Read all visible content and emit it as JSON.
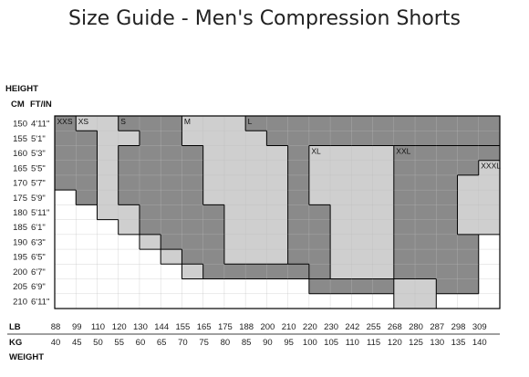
{
  "title": "Size Guide - Men's Compression Shorts",
  "chart_data": {
    "type": "heatmap",
    "axis_labels": {
      "height": "HEIGHT",
      "cm": "CM",
      "ftin": "FT/IN",
      "lb": "LB",
      "kg": "KG",
      "weight": "WEIGHT"
    },
    "height_cm": [
      "150",
      "155",
      "160",
      "165",
      "170",
      "175",
      "180",
      "185",
      "190",
      "195",
      "200",
      "205",
      "210"
    ],
    "height_ft": [
      "4'11\"",
      "5'1\"",
      "5'3\"",
      "5'5\"",
      "5'7\"",
      "5'9\"",
      "5'11\"",
      "6'1\"",
      "6'3\"",
      "6'5\"",
      "6'7\"",
      "6'9\"",
      "6'11\""
    ],
    "weight_lb": [
      "88",
      "99",
      "110",
      "120",
      "130",
      "144",
      "155",
      "165",
      "175",
      "188",
      "200",
      "210",
      "220",
      "230",
      "242",
      "255",
      "268",
      "280",
      "287",
      "298",
      "309"
    ],
    "weight_kg": [
      "40",
      "45",
      "50",
      "55",
      "60",
      "65",
      "70",
      "75",
      "80",
      "85",
      "90",
      "95",
      "100",
      "105",
      "110",
      "115",
      "120",
      "125",
      "130",
      "135",
      "140"
    ],
    "colors": {
      "dark": "#8a8a8a",
      "light": "#cfcfcf",
      "white": "#ffffff",
      "grid": "#bdbdbd",
      "border": "#000000"
    },
    "sizes": [
      {
        "label": "XXS",
        "shade": "dark",
        "staircase": [
          [
            0,
            5
          ],
          [
            1,
            5
          ]
        ]
      },
      {
        "label": "XS",
        "shade": "light",
        "staircase": [
          [
            1,
            6
          ],
          [
            2,
            7
          ],
          [
            3,
            8
          ]
        ]
      },
      {
        "label": "S",
        "shade": "dark",
        "staircase": [
          [
            3,
            9
          ],
          [
            4,
            10
          ],
          [
            5,
            11
          ]
        ]
      },
      {
        "label": "M",
        "shade": "light",
        "staircase": [
          [
            5,
            12
          ],
          [
            6,
            13
          ],
          [
            7,
            14
          ],
          [
            8,
            14
          ]
        ]
      },
      {
        "label": "L",
        "shade": "dark",
        "staircase": [
          [
            7,
            8
          ],
          [
            8,
            9
          ],
          [
            9,
            10
          ],
          [
            10,
            11
          ],
          [
            11,
            12
          ],
          [
            12,
            13
          ],
          [
            13,
            14
          ],
          [
            14,
            16
          ],
          [
            15,
            16
          ],
          [
            16,
            17
          ],
          [
            17,
            20
          ],
          [
            18,
            21
          ],
          [
            19,
            21
          ],
          [
            20,
            21
          ]
        ]
      },
      {
        "label": "XL",
        "shade": "light",
        "staircase": [
          [
            11,
            8
          ]
        ]
      },
      {
        "label": "XXL",
        "shade": "dark",
        "staircase": [
          [
            14,
            8
          ]
        ]
      },
      {
        "label": "XXXL",
        "shade": "light",
        "staircase": [
          [
            18,
            8
          ]
        ]
      }
    ]
  }
}
